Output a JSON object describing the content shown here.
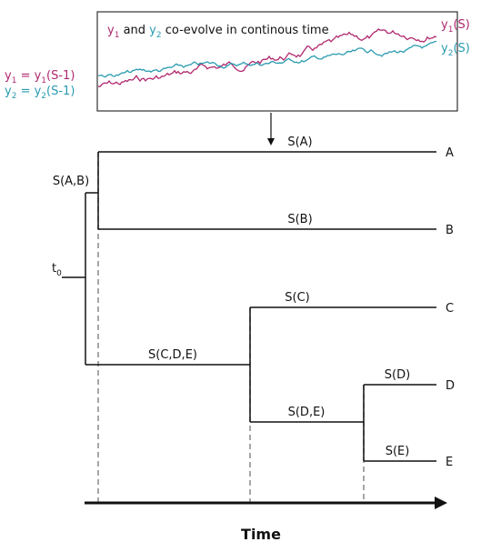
{
  "inset": {
    "caption": [
      "y",
      "1",
      " and ",
      "y",
      "2",
      " co-evolve in continous time"
    ],
    "left_labels": [
      [
        "y",
        "1",
        " = y",
        "1",
        "(S-1)"
      ],
      [
        "y",
        "2",
        " = y",
        "2",
        "(S-1)"
      ]
    ],
    "right_labels": [
      [
        "y",
        "1",
        "(S)"
      ],
      [
        "y",
        "2",
        "(S)"
      ]
    ]
  },
  "tree": {
    "tips": [
      "A",
      "B",
      "C",
      "D",
      "E"
    ],
    "branches": [
      "S(A)",
      "S(B)",
      "S(C)",
      "S(D)",
      "S(E)",
      "S(A,B)",
      "S(C,D,E)",
      "S(D,E)"
    ],
    "root_label": [
      "t",
      "0"
    ]
  },
  "axis": {
    "label": "Time"
  }
}
